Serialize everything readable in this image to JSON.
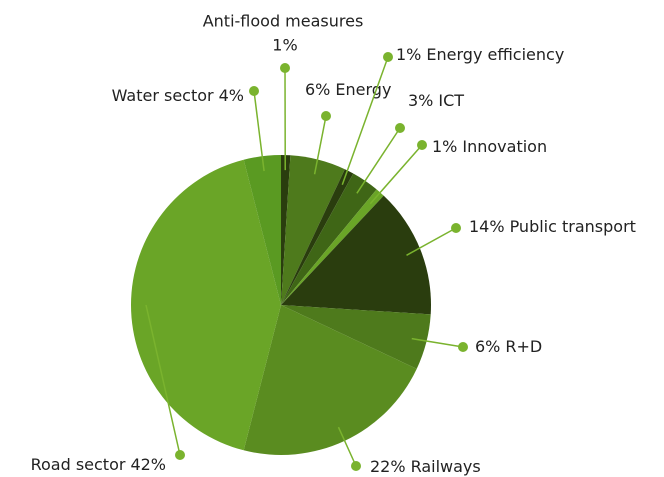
{
  "chart_data": {
    "type": "pie",
    "categories": [
      "Anti-flood measures",
      "Energy",
      "Energy efficiency",
      "ICT",
      "Innovation",
      "Public transport",
      "R+D",
      "Railways",
      "Road sector",
      "Water sector"
    ],
    "values": [
      1,
      6,
      1,
      3,
      1,
      14,
      6,
      22,
      42,
      4
    ],
    "value_labels": [
      "1%",
      "6%",
      "1%",
      "3%",
      "1%",
      "14%",
      "6%",
      "22%",
      "42%",
      "4%"
    ],
    "colors": [
      "#2a3d0e",
      "#4e7a1c",
      "#2a3d0e",
      "#3f6616",
      "#6aa527",
      "#2a3d0e",
      "#4e7a1c",
      "#5a8c20",
      "#6aa527",
      "#5a9a22"
    ]
  }
}
